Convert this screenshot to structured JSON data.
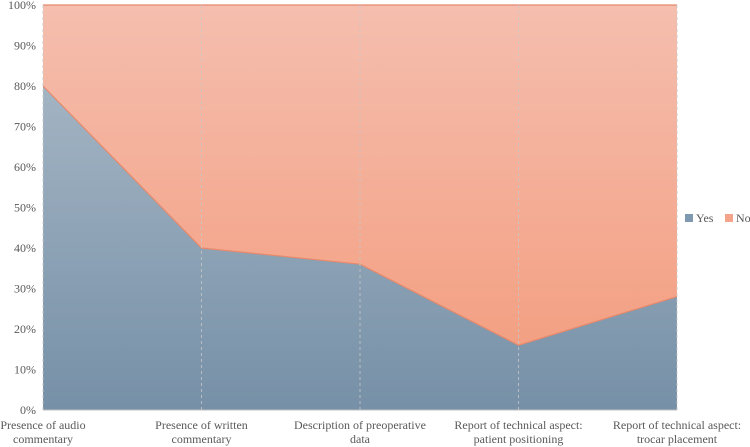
{
  "chart_data": {
    "type": "area",
    "stacked": "percent",
    "categories": [
      [
        "Presence of audio",
        "commentary"
      ],
      [
        "Presence of written",
        "commentary"
      ],
      [
        "Description of preoperative",
        "data"
      ],
      [
        "Report of technical aspect:",
        "patient positioning"
      ],
      [
        "Report of technical aspect:",
        "trocar placement"
      ]
    ],
    "series": [
      {
        "name": "Yes",
        "values": [
          80,
          40,
          36,
          16,
          28
        ],
        "color": "#7f99b0"
      },
      {
        "name": "No",
        "values": [
          20,
          60,
          64,
          84,
          72
        ],
        "color": "#f4a48a"
      }
    ],
    "ylim": [
      0,
      100
    ],
    "yticks": [
      "0%",
      "10%",
      "20%",
      "30%",
      "40%",
      "50%",
      "60%",
      "70%",
      "80%",
      "90%",
      "100%"
    ],
    "legend_position": "right",
    "vertical_gridlines": true
  }
}
